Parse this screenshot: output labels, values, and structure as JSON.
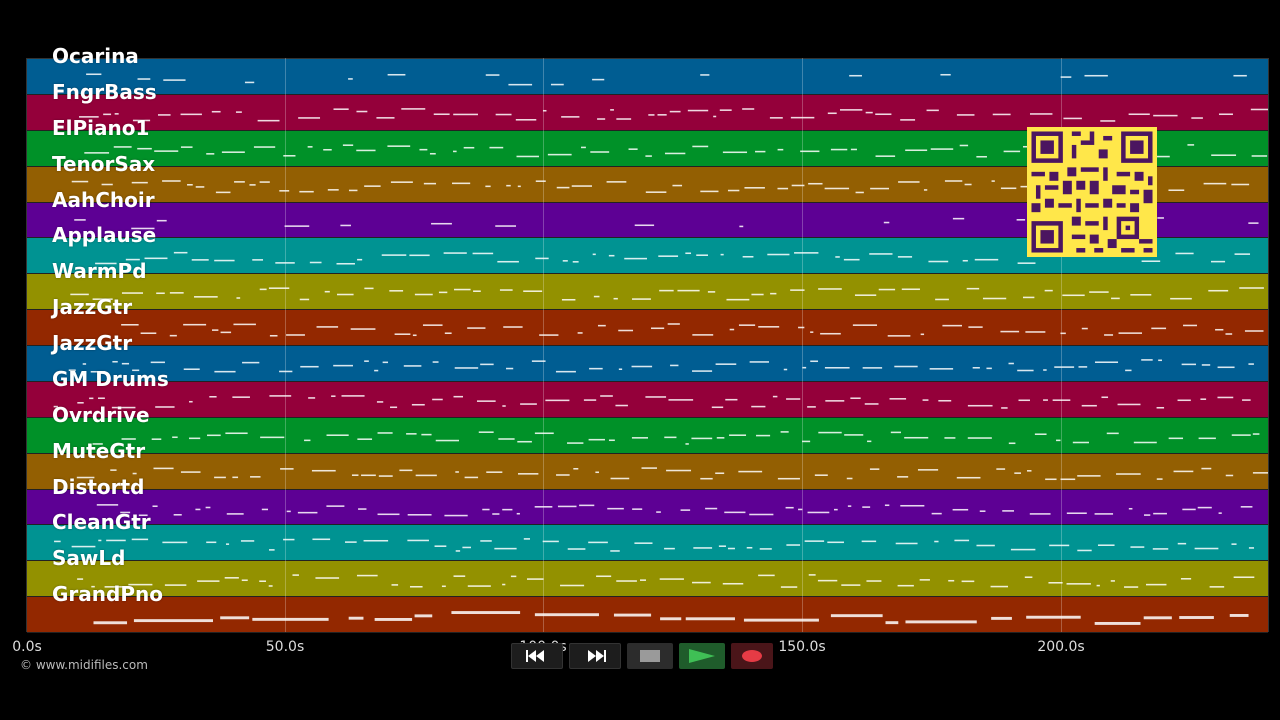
{
  "timeline": {
    "ticks": [
      "0.0s",
      "50.0s",
      "100.0s",
      "150.0s",
      "200.0s"
    ]
  },
  "tracks": [
    {
      "name": "Ocarina",
      "color": "#005d92"
    },
    {
      "name": "FngrBass",
      "color": "#94003a"
    },
    {
      "name": "ElPiano1",
      "color": "#009128"
    },
    {
      "name": "TenorSax",
      "color": "#935f02"
    },
    {
      "name": "AahChoir",
      "color": "#5d0094"
    },
    {
      "name": "Applause",
      "color": "#009392"
    },
    {
      "name": "WarmPd",
      "color": "#939100"
    },
    {
      "name": "JazzGtr",
      "color": "#932800"
    },
    {
      "name": "JazzGtr",
      "color": "#005d92"
    },
    {
      "name": "GM Drums",
      "color": "#94003a"
    },
    {
      "name": "Ovrdrive",
      "color": "#009128"
    },
    {
      "name": "MuteGtr",
      "color": "#935f02"
    },
    {
      "name": "Distortd",
      "color": "#5d0094"
    },
    {
      "name": "CleanGtr",
      "color": "#009392"
    },
    {
      "name": "SawLd",
      "color": "#939100"
    },
    {
      "name": "GrandPno",
      "color": "#932800"
    }
  ],
  "footer": {
    "copyright": "© www.midifiles.com"
  },
  "transport": {
    "rewind_icon": "rewind-icon",
    "fast_forward_icon": "fast-forward-icon",
    "stop_icon": "stop-icon",
    "play_icon": "play-icon",
    "record_icon": "record-icon"
  }
}
